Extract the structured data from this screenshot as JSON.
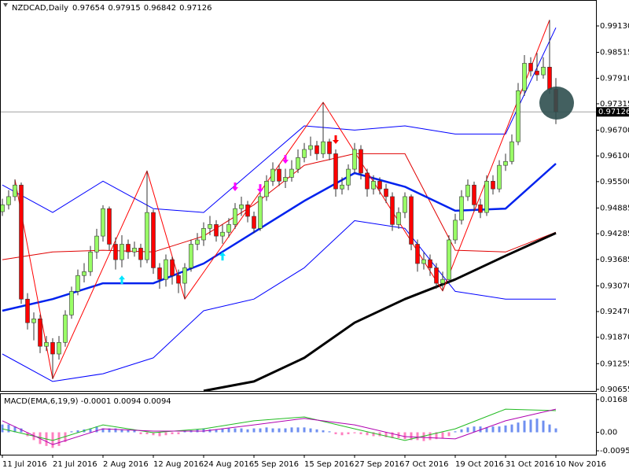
{
  "chart_data": {
    "type": "candlestick",
    "title": "NZDCAD,Daily",
    "categories": [
      "11 Jul 2016",
      null,
      null,
      null,
      null,
      null,
      null,
      null,
      "21 Jul 2016",
      null,
      null,
      null,
      null,
      null,
      null,
      null,
      "2 Aug 2016",
      null,
      null,
      null,
      null,
      null,
      null,
      null,
      "12 Aug 2016",
      null,
      null,
      null,
      null,
      null,
      null,
      null,
      "24 Aug 2016",
      null,
      null,
      null,
      null,
      null,
      null,
      null,
      "5 Sep 2016",
      null,
      null,
      null,
      null,
      null,
      null,
      null,
      "15 Sep 2016",
      null,
      null,
      null,
      null,
      null,
      null,
      null,
      "27 Sep 2016",
      null,
      null,
      null,
      null,
      null,
      null,
      null,
      "7 Oct 2016",
      null,
      null,
      null,
      null,
      null,
      null,
      null,
      "19 Oct 2016",
      null,
      null,
      null,
      null,
      null,
      null,
      null,
      "31 Oct 2016",
      null,
      null,
      null,
      null,
      null,
      null,
      null,
      "10 Nov 2016"
    ],
    "candles": {
      "open": [
        0.948,
        0.9496,
        0.9515,
        0.9542,
        0.9276,
        0.9221,
        0.923,
        0.9166,
        0.9175,
        0.9148,
        0.9175,
        0.9239,
        0.9294,
        0.9331,
        0.934,
        0.9386,
        0.9423,
        0.9487,
        0.9404,
        0.9368,
        0.9404,
        0.9386,
        0.9395,
        0.9368,
        0.9478,
        0.9349,
        0.9322,
        0.9368,
        0.9331,
        0.9313,
        0.9349,
        0.9404,
        0.9414,
        0.9441,
        0.945,
        0.9423,
        0.9432,
        0.945,
        0.9487,
        0.9496,
        0.9469,
        0.9441,
        0.9515,
        0.9551,
        0.9579,
        0.9551,
        0.956,
        0.9579,
        0.9606,
        0.9625,
        0.9634,
        0.9615,
        0.9643,
        0.9615,
        0.9533,
        0.9542,
        0.9579,
        0.9625,
        0.957,
        0.9533,
        0.9551,
        0.9533,
        0.9515,
        0.945,
        0.9478,
        0.9515,
        0.9404,
        0.9359,
        0.9368,
        0.9349,
        0.9313,
        0.9322,
        0.9414,
        0.946,
        0.9515,
        0.9542,
        0.9496,
        0.9478,
        0.9551,
        0.9533,
        0.9588,
        0.9597,
        0.9643,
        0.9762,
        0.9826,
        0.9808,
        0.9799,
        0.9817,
        0.97654
      ],
      "high": [
        0.951,
        0.953,
        0.9555,
        0.9548,
        0.929,
        0.9245,
        0.924,
        0.919,
        0.9185,
        0.919,
        0.925,
        0.9305,
        0.9345,
        0.936,
        0.94,
        0.944,
        0.9495,
        0.9492,
        0.942,
        0.9425,
        0.9415,
        0.941,
        0.9405,
        0.9575,
        0.9485,
        0.936,
        0.938,
        0.9375,
        0.9345,
        0.936,
        0.9415,
        0.943,
        0.9455,
        0.947,
        0.946,
        0.945,
        0.9465,
        0.95,
        0.9515,
        0.9505,
        0.948,
        0.9525,
        0.9565,
        0.9595,
        0.959,
        0.958,
        0.96,
        0.9625,
        0.964,
        0.9655,
        0.9645,
        0.9735,
        0.965,
        0.9625,
        0.956,
        0.959,
        0.964,
        0.9635,
        0.958,
        0.9565,
        0.956,
        0.9545,
        0.9525,
        0.949,
        0.9525,
        0.952,
        0.9415,
        0.9385,
        0.938,
        0.936,
        0.934,
        0.9425,
        0.9475,
        0.953,
        0.9555,
        0.955,
        0.951,
        0.9565,
        0.9565,
        0.96,
        0.9615,
        0.966,
        0.978,
        0.9845,
        0.984,
        0.985,
        0.984,
        0.9927,
        0.97915
      ],
      "low": [
        0.947,
        0.9485,
        0.9505,
        0.9265,
        0.9205,
        0.918,
        0.915,
        0.9155,
        0.909,
        0.9135,
        0.9165,
        0.923,
        0.9285,
        0.9315,
        0.933,
        0.937,
        0.941,
        0.939,
        0.9345,
        0.935,
        0.937,
        0.9375,
        0.935,
        0.936,
        0.9335,
        0.93,
        0.9305,
        0.931,
        0.929,
        0.9276,
        0.934,
        0.939,
        0.94,
        0.9425,
        0.941,
        0.9405,
        0.942,
        0.944,
        0.947,
        0.9455,
        0.943,
        0.9435,
        0.9505,
        0.954,
        0.954,
        0.9535,
        0.955,
        0.957,
        0.9595,
        0.961,
        0.96,
        0.9605,
        0.96,
        0.9515,
        0.952,
        0.953,
        0.957,
        0.9555,
        0.9515,
        0.952,
        0.952,
        0.95,
        0.9435,
        0.944,
        0.9465,
        0.939,
        0.934,
        0.9345,
        0.933,
        0.93,
        0.9295,
        0.9315,
        0.9405,
        0.945,
        0.9505,
        0.948,
        0.9465,
        0.947,
        0.952,
        0.9525,
        0.9575,
        0.959,
        0.9635,
        0.975,
        0.9795,
        0.9785,
        0.979,
        0.9755,
        0.96842
      ],
      "close": [
        0.9496,
        0.9515,
        0.9542,
        0.9276,
        0.9221,
        0.923,
        0.9166,
        0.9175,
        0.9148,
        0.9175,
        0.9239,
        0.9294,
        0.9331,
        0.934,
        0.9386,
        0.9423,
        0.9487,
        0.9404,
        0.9368,
        0.9404,
        0.9386,
        0.9395,
        0.9368,
        0.9478,
        0.9349,
        0.9322,
        0.9368,
        0.9331,
        0.9313,
        0.9349,
        0.9404,
        0.9414,
        0.9441,
        0.945,
        0.9423,
        0.9432,
        0.945,
        0.9487,
        0.9496,
        0.9469,
        0.9441,
        0.9515,
        0.9551,
        0.9579,
        0.9551,
        0.956,
        0.9579,
        0.9606,
        0.9625,
        0.9634,
        0.9615,
        0.9643,
        0.9615,
        0.9533,
        0.9542,
        0.9579,
        0.9625,
        0.957,
        0.9533,
        0.9551,
        0.9533,
        0.9515,
        0.945,
        0.9478,
        0.9515,
        0.9404,
        0.9359,
        0.9368,
        0.9349,
        0.9313,
        0.9322,
        0.9414,
        0.946,
        0.9515,
        0.9542,
        0.9496,
        0.9478,
        0.9551,
        0.9533,
        0.9588,
        0.9597,
        0.9643,
        0.9762,
        0.9826,
        0.9808,
        0.9799,
        0.9817,
        0.97654,
        0.97126
      ]
    },
    "up_color": "#99ff66",
    "down_color": "#ff0000",
    "wick_color": "#333333",
    "price_line_color": "#a0a0a0",
    "price_label_color": "#000000",
    "ylim": [
      0.90618,
      0.99735
    ],
    "yticks": [
      {
        "value": 0.9913,
        "label": "0.99130"
      },
      0.98515,
      {
        "value": 0.9791,
        "label": "0.97910"
      },
      0.97315,
      {
        "value": 0.967,
        "label": "0.96700"
      },
      {
        "value": 0.961,
        "label": "0.96100"
      },
      {
        "value": 0.955,
        "label": "0.95500"
      },
      0.94885,
      0.94285,
      0.93685,
      {
        "value": 0.9307,
        "label": "0.93070"
      },
      {
        "value": 0.9247,
        "label": "0.92470"
      },
      {
        "value": 0.9187,
        "label": "0.91870"
      },
      0.91255,
      0.90655
    ],
    "lines": [
      {
        "color": "#0000ff",
        "width": 1,
        "x": [
          0,
          8,
          16,
          24,
          32,
          40,
          48,
          56,
          64,
          72,
          80,
          88
        ],
        "values": [
          0.9542,
          0.9478,
          0.9551,
          0.9487,
          0.9478,
          0.9579,
          0.968,
          0.967,
          0.968,
          0.9661,
          0.9661,
          0.9909
        ]
      },
      {
        "color": "#0000ff",
        "width": 1,
        "x": [
          0,
          8,
          16,
          24,
          32,
          40,
          48,
          56,
          64,
          72,
          80,
          88
        ],
        "values": [
          0.9148,
          0.9084,
          0.9102,
          0.9139,
          0.9249,
          0.9276,
          0.9349,
          0.9459,
          0.9441,
          0.9294,
          0.9276,
          0.9276
        ]
      },
      {
        "color": "#e00000",
        "width": 1,
        "x": [
          0,
          8,
          16,
          24,
          32,
          40,
          48,
          56,
          64,
          72,
          80,
          88
        ],
        "values": [
          0.9368,
          0.9386,
          0.939,
          0.9386,
          0.9423,
          0.9496,
          0.9588,
          0.9615,
          0.9615,
          0.939,
          0.9386,
          0.9432
        ]
      },
      {
        "color": "#0022ee",
        "width": 2.5,
        "x": [
          0,
          8,
          16,
          24,
          32,
          40,
          48,
          56,
          64,
          72,
          80,
          88
        ],
        "values": [
          0.9249,
          0.9276,
          0.9313,
          0.9313,
          0.9359,
          0.9432,
          0.9505,
          0.957,
          0.9538,
          0.9482,
          0.9487,
          0.9592
        ]
      },
      {
        "color": "#000000",
        "width": 3,
        "x": [
          32,
          40,
          48,
          56,
          64,
          72,
          80,
          88
        ],
        "values": [
          0.9062,
          0.9084,
          0.9139,
          0.9221,
          0.9276,
          0.9322,
          0.9377,
          0.943
        ]
      },
      {
        "color": "#ff0000",
        "width": 1,
        "x": [
          2,
          8,
          23,
          29,
          51,
          70,
          87
        ],
        "values": [
          0.9555,
          0.909,
          0.9575,
          0.9276,
          0.9735,
          0.9295,
          0.9927
        ]
      }
    ],
    "arrows": [
      {
        "color": "#00e5ff",
        "direction": "up",
        "x": [
          19,
          35
        ],
        "values": [
          0.9322,
          0.9377
        ]
      },
      {
        "color": "#ff00ff",
        "direction": "down",
        "x": [
          37,
          41,
          45
        ],
        "values": [
          0.9537,
          0.9533,
          0.9601
        ]
      },
      {
        "color": "#ff0000",
        "direction": "down",
        "x": [
          53
        ],
        "values": [
          0.9647
        ]
      }
    ],
    "macd": {
      "type": "bar",
      "label": "MACD(EMA,6,19,9) -0.0001 0.0094 0.0094",
      "pos_color": "#6f8ff0",
      "neg_color": "#ff80c0",
      "ylim": [
        -0.0115,
        0.02
      ],
      "yticks": [
        0.0168,
        {
          "value": 0,
          "label": "0.00"
        },
        -0.0095
      ],
      "values": [
        0.004,
        0.004,
        0.003,
        0.002,
        -0.002,
        -0.004,
        -0.006,
        -0.007,
        -0.008,
        -0.007,
        -0.005,
        0.0005,
        0.001,
        0.0015,
        0.002,
        0.003,
        0.002,
        0.002,
        0.002,
        0.0015,
        0.001,
        0.001,
        -0.001,
        -0.001,
        -0.0015,
        -0.002,
        -0.0015,
        -0.001,
        -0.001,
        0.001,
        0.001,
        0.0015,
        0.002,
        0.0015,
        0.0015,
        0.002,
        0.002,
        0.002,
        0.002,
        0.0015,
        0.002,
        0.002,
        0.0025,
        0.002,
        0.002,
        0.002,
        0.0025,
        0.0025,
        0.0025,
        0.002,
        0.0015,
        0.001,
        0.0005,
        -0.001,
        -0.0015,
        -0.001,
        -0.0005,
        -0.001,
        -0.0015,
        -0.002,
        -0.002,
        -0.0025,
        -0.003,
        -0.003,
        -0.0035,
        -0.004,
        -0.004,
        -0.0045,
        -0.004,
        -0.0035,
        -0.003,
        -0.002,
        0.0005,
        0.0015,
        0.0025,
        0.003,
        0.003,
        0.0025,
        0.003,
        0.003,
        0.0035,
        0.004,
        0.005,
        0.006,
        0.0065,
        0.007,
        0.006,
        0.004,
        0.002
      ],
      "lines": [
        {
          "color": "#22bb22",
          "width": 1,
          "x": [
            0,
            8,
            16,
            24,
            32,
            40,
            48,
            56,
            64,
            72,
            80,
            88
          ],
          "values": [
            0.0018,
            -0.0042,
            0.0038,
            -0.0002,
            0.0018,
            0.0059,
            0.0079,
            0.0018,
            -0.0042,
            0.0018,
            0.0119,
            0.0111
          ]
        },
        {
          "color": "#b000b0",
          "width": 1,
          "x": [
            0,
            8,
            16,
            24,
            32,
            40,
            48,
            56,
            64,
            72,
            80,
            88
          ],
          "values": [
            0.0059,
            -0.0063,
            0.0018,
            0.0006,
            0.0006,
            0.0038,
            0.0071,
            0.0038,
            -0.0022,
            -0.0034,
            0.0059,
            0.0119
          ]
        }
      ]
    }
  }
}
